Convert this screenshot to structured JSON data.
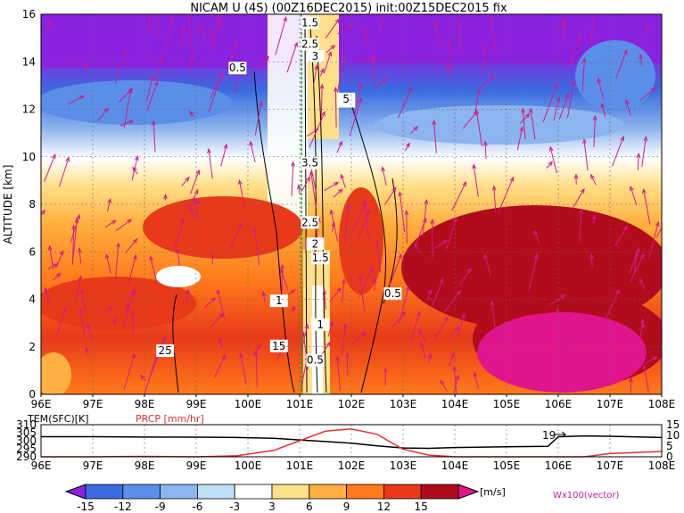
{
  "chart_data": [
    {
      "type": "heatmap",
      "title": "NICAM U (4S) (00Z16DEC2015) init:00Z15DEC2015 fix",
      "ylabel": "ALTITUDE [km]",
      "xlabel": "",
      "x_ticks": [
        "96E",
        "97E",
        "98E",
        "99E",
        "100E",
        "101E",
        "102E",
        "103E",
        "104E",
        "105E",
        "106E",
        "107E",
        "108E"
      ],
      "y_ticks": [
        "0",
        "2",
        "4",
        "6",
        "8",
        "10",
        "12",
        "14",
        "16"
      ],
      "xlim": [
        96,
        108
      ],
      "ylim": [
        0,
        16
      ],
      "grid": true,
      "fields": [
        "U wind (shaded)",
        "contours",
        "vectors"
      ],
      "colorbar": {
        "levels": [
          -15,
          -12,
          -9,
          -6,
          -3,
          3,
          6,
          9,
          12,
          15
        ],
        "labels": [
          "-15",
          "-12",
          "-9",
          "-6",
          "-3",
          "3",
          "6",
          "9",
          "12",
          "15"
        ],
        "unit": "[m/s]",
        "colors": [
          "#8a22e0",
          "#3a6be0",
          "#5a8ee8",
          "#8cb4ee",
          "#bfe0f6",
          "#ffffff",
          "#ffe08a",
          "#ffb040",
          "#ff7a1a",
          "#e83a1a",
          "#b00c1c",
          "#e0158c"
        ]
      },
      "contour_labels": [
        "1.5",
        "2.5",
        "3",
        "0.5",
        "0.5",
        "5",
        "3.5",
        "2.5",
        "2",
        "1.5",
        "0.5",
        "1",
        "1",
        "15",
        "0.5",
        "25"
      ],
      "vector_legend": "Wx100(vector)",
      "approx_u_profile": {
        "altitude_km": [
          1,
          3,
          5,
          7,
          9,
          11,
          13,
          15
        ],
        "west_96_100E": [
          8,
          11,
          8,
          6,
          2,
          -5,
          -9,
          -13
        ],
        "core_101_102E": [
          5,
          5,
          6,
          4,
          3,
          2,
          1,
          0
        ],
        "east_104_108E": [
          13,
          12,
          12,
          10,
          4,
          -5,
          -10,
          -14
        ]
      }
    },
    {
      "type": "line",
      "legend": [
        "TEM(SFC)[K]",
        "PRCP [mm/hr]"
      ],
      "x_ticks": [
        "96E",
        "97E",
        "98E",
        "99E",
        "100E",
        "101E",
        "102E",
        "103E",
        "104E",
        "105E",
        "106E",
        "107E",
        "108E"
      ],
      "y_left_ticks": [
        "290",
        "295",
        "300",
        "305",
        "310"
      ],
      "y_right_ticks": [
        "0",
        "5",
        "10",
        "15"
      ],
      "ylim_left": [
        290,
        310
      ],
      "ylim_right": [
        0,
        15
      ],
      "annotation": "19",
      "x": [
        96,
        97,
        98,
        99,
        99.8,
        100.5,
        101,
        101.5,
        102,
        102.5,
        103,
        103.5,
        104,
        105,
        105.8,
        106,
        106.5,
        107,
        108
      ],
      "series": [
        {
          "name": "TEM(SFC)[K]",
          "color": "#000000",
          "values": [
            302.5,
            302.5,
            302.3,
            302.2,
            302,
            301.5,
            300.5,
            299.5,
            298.5,
            296.8,
            295.5,
            295.3,
            295.8,
            296.2,
            296.5,
            302.5,
            303,
            302.8,
            302
          ]
        },
        {
          "name": "PRCP [mm/hr]",
          "color": "#e53030",
          "values": [
            0,
            0,
            0.2,
            0,
            0.5,
            3,
            7.5,
            12,
            13,
            10.5,
            3.5,
            0.8,
            0,
            0,
            0,
            0,
            0,
            1.5,
            2.5
          ]
        }
      ]
    }
  ]
}
